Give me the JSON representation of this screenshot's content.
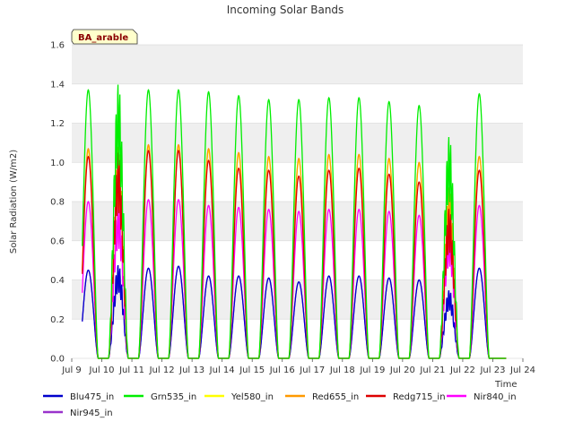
{
  "chart_data": {
    "type": "line",
    "title": "Incoming Solar Bands",
    "xlabel": "Time",
    "ylabel": "Solar Radiation (W/m2)",
    "badge": "BA_arable",
    "colors": {
      "Blu475_in": "#0000cc",
      "Grn535_in": "#00ee00",
      "Yel580_in": "#ffff00",
      "Red655_in": "#ff9900",
      "Redg715_in": "#dd0000",
      "Nir840_in": "#ff00ff",
      "Nir945_in": "#9933cc"
    },
    "xlim": [
      9,
      24
    ],
    "ylim": [
      0,
      1.6
    ],
    "x_ticks": [
      {
        "v": 9,
        "label": "Jul 9"
      },
      {
        "v": 10,
        "label": "Jul 10"
      },
      {
        "v": 11,
        "label": "Jul 11"
      },
      {
        "v": 12,
        "label": "Jul 12"
      },
      {
        "v": 13,
        "label": "Jul 13"
      },
      {
        "v": 14,
        "label": "Jul 14"
      },
      {
        "v": 15,
        "label": "Jul 15"
      },
      {
        "v": 16,
        "label": "Jul 16"
      },
      {
        "v": 17,
        "label": "Jul 17"
      },
      {
        "v": 18,
        "label": "Jul 18"
      },
      {
        "v": 19,
        "label": "Jul 19"
      },
      {
        "v": 20,
        "label": "Jul 20"
      },
      {
        "v": 21,
        "label": "Jul 21"
      },
      {
        "v": 22,
        "label": "Jul 22"
      },
      {
        "v": 23,
        "label": "Jul 23"
      },
      {
        "v": 24,
        "label": "Jul 24"
      }
    ],
    "y_ticks": [
      {
        "v": 0.0,
        "label": "0.0"
      },
      {
        "v": 0.2,
        "label": "0.2"
      },
      {
        "v": 0.4,
        "label": "0.4"
      },
      {
        "v": 0.6,
        "label": "0.6"
      },
      {
        "v": 0.8,
        "label": "0.8"
      },
      {
        "v": 1.0,
        "label": "1.0"
      },
      {
        "v": 1.2,
        "label": "1.2"
      },
      {
        "v": 1.4,
        "label": "1.4"
      },
      {
        "v": 1.6,
        "label": "1.6"
      }
    ],
    "daily_peak_days": [
      "Jul 9",
      "Jul 10",
      "Jul 11",
      "Jul 12",
      "Jul 13",
      "Jul 14",
      "Jul 15",
      "Jul 16",
      "Jul 17",
      "Jul 18",
      "Jul 19",
      "Jul 20",
      "Jul 21",
      "Jul 22"
    ],
    "series": [
      {
        "name": "Blu475_in",
        "peaks": [
          0.45,
          0.48,
          0.46,
          0.47,
          0.42,
          0.42,
          0.41,
          0.39,
          0.42,
          0.42,
          0.41,
          0.4,
          0.35,
          0.46
        ]
      },
      {
        "name": "Grn535_in",
        "peaks": [
          1.37,
          1.41,
          1.37,
          1.37,
          1.36,
          1.34,
          1.32,
          1.32,
          1.33,
          1.33,
          1.31,
          1.29,
          1.14,
          1.35
        ]
      },
      {
        "name": "Yel580_in",
        "peaks": [
          1.06,
          1.08,
          1.08,
          1.08,
          1.06,
          1.04,
          1.02,
          1.01,
          1.03,
          1.04,
          1.01,
          0.99,
          0.87,
          1.03
        ]
      },
      {
        "name": "Red655_in",
        "peaks": [
          1.07,
          1.09,
          1.09,
          1.09,
          1.07,
          1.05,
          1.03,
          1.02,
          1.04,
          1.04,
          1.02,
          1.0,
          0.88,
          1.03
        ]
      },
      {
        "name": "Redg715_in",
        "peaks": [
          1.03,
          1.06,
          1.06,
          1.06,
          1.01,
          0.97,
          0.96,
          0.93,
          0.96,
          0.97,
          0.94,
          0.9,
          0.77,
          0.96
        ]
      },
      {
        "name": "Nir840_in",
        "peaks": [
          0.8,
          0.8,
          0.81,
          0.81,
          0.78,
          0.77,
          0.76,
          0.75,
          0.76,
          0.76,
          0.75,
          0.73,
          0.67,
          0.78
        ]
      },
      {
        "name": "Nir945_in",
        "peaks": [
          0.45,
          0.48,
          0.46,
          0.47,
          0.42,
          0.42,
          0.41,
          0.39,
          0.42,
          0.42,
          0.41,
          0.4,
          0.35,
          0.46
        ]
      }
    ],
    "legend": [
      {
        "name": "Blu475_in",
        "color": "#0000cc"
      },
      {
        "name": "Grn535_in",
        "color": "#00ee00"
      },
      {
        "name": "Yel580_in",
        "color": "#ffff00"
      },
      {
        "name": "Red655_in",
        "color": "#ff9900"
      },
      {
        "name": "Redg715_in",
        "color": "#dd0000"
      },
      {
        "name": "Nir840_in",
        "color": "#ff00ff"
      },
      {
        "name": "Nir945_in",
        "color": "#9933cc"
      }
    ],
    "legend_position": "bottom",
    "grid": true,
    "band_shading": true
  }
}
